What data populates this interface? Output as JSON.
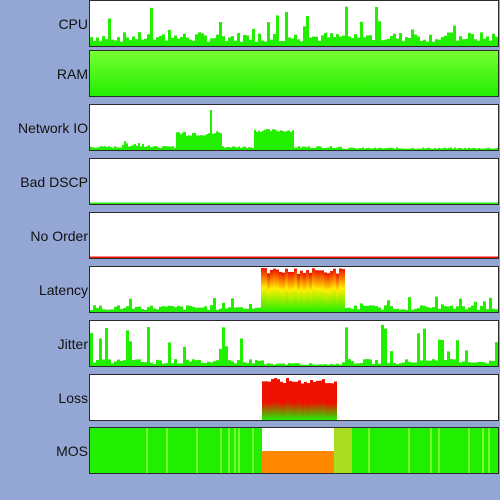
{
  "monitor": {
    "metrics": [
      {
        "id": "cpu",
        "label": "CPU"
      },
      {
        "id": "ram",
        "label": "RAM"
      },
      {
        "id": "network-io",
        "label": "Network IO"
      },
      {
        "id": "bad-dscp",
        "label": "Bad DSCP"
      },
      {
        "id": "no-order",
        "label": "No Order"
      },
      {
        "id": "latency",
        "label": "Latency"
      },
      {
        "id": "jitter",
        "label": "Jitter"
      },
      {
        "id": "loss",
        "label": "Loss"
      },
      {
        "id": "mos",
        "label": "MOS"
      }
    ]
  },
  "colors": {
    "background": "#94a6d4",
    "panel": "#ffffff",
    "good": "#22ee00",
    "good_light": "#77ff33",
    "warn": "#ffee00",
    "bad": "#ee1100",
    "mos_bad": "#ff8800"
  }
}
